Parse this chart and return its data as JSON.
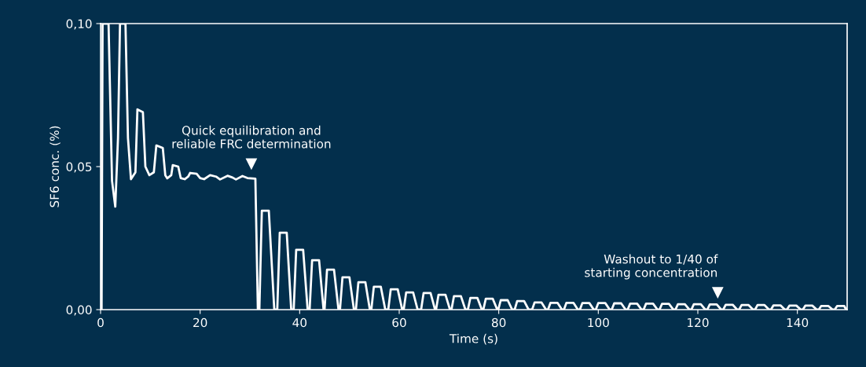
{
  "chart_data": {
    "type": "line",
    "xlabel": "Time (s)",
    "ylabel": "SF6 conc. (%)",
    "xlim": [
      0,
      150
    ],
    "xticks": [
      0,
      20,
      40,
      60,
      80,
      100,
      120,
      140
    ],
    "ylim": [
      0,
      0.1
    ],
    "yticks": [
      {
        "value": 0,
        "label": "0,00"
      },
      {
        "value": 0.05,
        "label": "0,05"
      },
      {
        "value": 0.1,
        "label": "0,10"
      }
    ],
    "grid": false,
    "legend": false,
    "marker": "none",
    "line_style": "solid",
    "annotations": [
      {
        "text": "Quick equilibration and\nreliable FRC determination",
        "x": 30.3,
        "y": 0.051
      },
      {
        "text": "Washout to 1/40 of\nstarting concentration",
        "x": 124,
        "y": 0.006
      }
    ],
    "series": [
      {
        "color": "#ffffff",
        "x": [
          0,
          0.2,
          0.4,
          1.6,
          2.3,
          2.95,
          3.5,
          3.9,
          5.0,
          5.5,
          6.1,
          7.0,
          7.4,
          8.5,
          9.0,
          9.8,
          10.7,
          11.2,
          12.5,
          13.0,
          13.4,
          14.2,
          14.5,
          15.6,
          16.1,
          16.9,
          17.6,
          18.0,
          19.3,
          20.0,
          20.8,
          22.0,
          23.2,
          24.0,
          25.5,
          26.5,
          27.2,
          28.5,
          29.5,
          31.1,
          31.6,
          31.9,
          32.4,
          33.8,
          34.9,
          35.5,
          36.0,
          37.4,
          38.3,
          38.8,
          39.3,
          40.7,
          41.6,
          42.0,
          42.5,
          43.9,
          44.8,
          45.0,
          45.5,
          46.9,
          47.8,
          48.1,
          48.6,
          50.0,
          50.9,
          51.3,
          51.8,
          53.2,
          54.1,
          54.4,
          54.9,
          56.3,
          57.2,
          57.8,
          58.3,
          59.7,
          60.6,
          60.9,
          61.4,
          62.8,
          63.7,
          64.4,
          64.9,
          66.3,
          67.2,
          67.4,
          67.9,
          69.3,
          70.2,
          70.5,
          71.0,
          72.4,
          73.3,
          73.8,
          74.3,
          75.7,
          76.6,
          76.9,
          77.4,
          78.8,
          79.7,
          79.9,
          80.4,
          81.8,
          82.7,
          83.2,
          83.7,
          85.1,
          86.0,
          86.7,
          87.2,
          88.6,
          89.5,
          89.9,
          90.4,
          91.8,
          92.7,
          93.1,
          93.6,
          95.0,
          95.9,
          96.3,
          96.8,
          98.2,
          99.1,
          99.5,
          100.0,
          101.4,
          102.3,
          102.7,
          103.2,
          104.6,
          105.5,
          105.9,
          106.4,
          107.8,
          108.7,
          109.1,
          109.6,
          111.0,
          111.9,
          112.3,
          112.8,
          114.2,
          115.1,
          115.5,
          116.0,
          117.4,
          118.3,
          118.7,
          119.2,
          120.6,
          121.5,
          121.9,
          122.4,
          123.8,
          124.7,
          125.1,
          125.6,
          127.0,
          127.9,
          128.3,
          128.8,
          130.2,
          131.1,
          131.5,
          132.0,
          133.4,
          134.3,
          134.7,
          135.2,
          136.6,
          137.5,
          137.9,
          138.4,
          139.8,
          140.7,
          141.1,
          141.6,
          143.0,
          143.9,
          144.3,
          144.8,
          146.2,
          147.1,
          147.5,
          148.0,
          149.4,
          149.8,
          150
        ],
        "values": [
          0,
          0,
          0.1,
          0.1,
          0.045,
          0.036,
          0.06,
          0.1,
          0.1,
          0.06,
          0.0456,
          0.048,
          0.07,
          0.069,
          0.05,
          0.047,
          0.048,
          0.0574,
          0.0565,
          0.047,
          0.0459,
          0.047,
          0.0505,
          0.05,
          0.046,
          0.0456,
          0.0465,
          0.0478,
          0.0475,
          0.046,
          0.0456,
          0.047,
          0.0465,
          0.0455,
          0.0468,
          0.0462,
          0.0455,
          0.0467,
          0.046,
          0.0458,
          0,
          0,
          0.0346,
          0.0346,
          0,
          0,
          0.0269,
          0.0269,
          0,
          0,
          0.0209,
          0.0209,
          0,
          0,
          0.0173,
          0.0173,
          0,
          0,
          0.014,
          0.014,
          0,
          0,
          0.0113,
          0.0113,
          0,
          0,
          0.0096,
          0.0096,
          0,
          0,
          0.008,
          0.008,
          0,
          0,
          0.0071,
          0.0071,
          0,
          0,
          0.006,
          0.006,
          0,
          0,
          0.0058,
          0.0058,
          0,
          0,
          0.0052,
          0.0052,
          0,
          0,
          0.0047,
          0.0047,
          0,
          0,
          0.0041,
          0.0041,
          0,
          0,
          0.0038,
          0.0038,
          0,
          0,
          0.0033,
          0.0033,
          0,
          0,
          0.003,
          0.003,
          0,
          0,
          0.0025,
          0.0025,
          0,
          0,
          0.0024,
          0.0024,
          0,
          0,
          0.0024,
          0.0024,
          0,
          0,
          0.0023,
          0.0023,
          0,
          0,
          0.0023,
          0.0023,
          0,
          0,
          0.0022,
          0.0022,
          0,
          0,
          0.0021,
          0.0021,
          0,
          0,
          0.0021,
          0.0021,
          0,
          0,
          0.002,
          0.002,
          0,
          0,
          0.0019,
          0.0019,
          0,
          0,
          0.0019,
          0.0019,
          0,
          0,
          0.0018,
          0.0018,
          0,
          0,
          0.0017,
          0.0017,
          0,
          0,
          0.0016,
          0.0016,
          0,
          0,
          0.0016,
          0.0016,
          0,
          0,
          0.0015,
          0.0015,
          0,
          0,
          0.0014,
          0.0014,
          0,
          0,
          0.0014,
          0.0014,
          0,
          0,
          0.0013,
          0.0013,
          0,
          0,
          0.0013,
          0.0013,
          0,
          0
        ]
      }
    ]
  }
}
